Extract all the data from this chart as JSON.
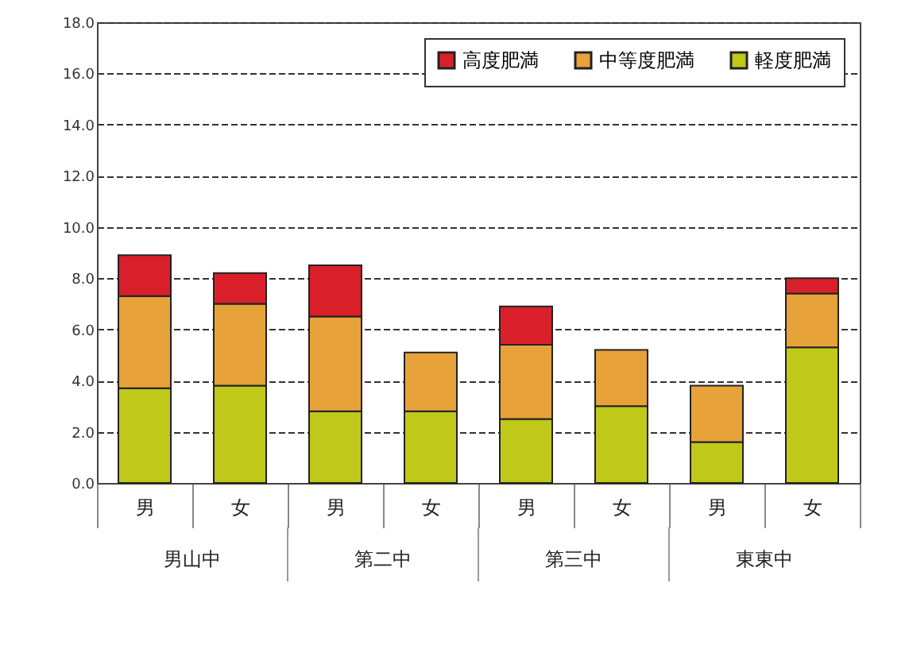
{
  "chart_data": {
    "type": "bar",
    "stacked": true,
    "categories": [
      "男",
      "女",
      "男",
      "女",
      "男",
      "女",
      "男",
      "女"
    ],
    "annotations": [
      "男山中",
      "第二中",
      "第三中",
      "東東中"
    ],
    "series": [
      {
        "name": "軽度肥満",
        "color": "#c0c81a",
        "values": [
          3.7,
          3.8,
          2.8,
          2.8,
          2.5,
          3.0,
          1.6,
          5.3
        ]
      },
      {
        "name": "中等度肥満",
        "color": "#e8a23a",
        "values": [
          3.6,
          3.2,
          3.7,
          2.3,
          2.9,
          2.2,
          2.2,
          2.1
        ]
      },
      {
        "name": "高度肥満",
        "color": "#d9202a",
        "values": [
          1.6,
          1.2,
          2.0,
          null,
          1.5,
          null,
          null,
          0.6
        ]
      }
    ],
    "ylim": [
      0,
      18
    ],
    "yticks": [
      {
        "value": 0,
        "label": "0.0"
      },
      {
        "value": 2,
        "label": "2.0"
      },
      {
        "value": 4,
        "label": "4.0"
      },
      {
        "value": 6,
        "label": "6.0"
      },
      {
        "value": 8,
        "label": "8.0"
      },
      {
        "value": 10,
        "label": "10.0"
      },
      {
        "value": 12,
        "label": "12.0"
      },
      {
        "value": 14,
        "label": "14.0"
      },
      {
        "value": 16,
        "label": "16.0"
      },
      {
        "value": 18,
        "label": "18.0"
      }
    ],
    "grid": "y",
    "legend": "top right"
  }
}
